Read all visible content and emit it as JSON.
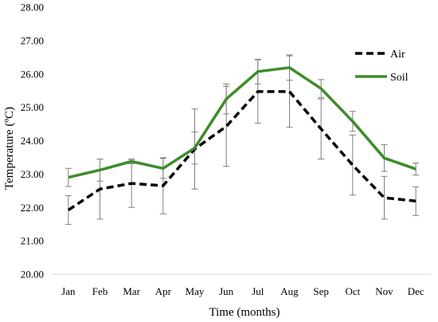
{
  "chart_data": {
    "type": "line",
    "xlabel": "Time (months)",
    "ylabel": "Temperature (ºC)",
    "ylim": [
      20,
      28
    ],
    "yticks": [
      20,
      21,
      22,
      23,
      24,
      25,
      26,
      27,
      28
    ],
    "ytick_labels": [
      "20.00",
      "21.00",
      "22.00",
      "23.00",
      "24.00",
      "25.00",
      "26.00",
      "27.00",
      "28.00"
    ],
    "categories": [
      "Jan",
      "Feb",
      "Mar",
      "Apr",
      "May",
      "Jun",
      "Jul",
      "Aug",
      "Sep",
      "Oct",
      "Nov",
      "Dec"
    ],
    "grid": false,
    "legend_position": "top-right",
    "series": [
      {
        "name": "Air",
        "color": "#000000",
        "style": "dashed",
        "values": [
          21.92,
          22.55,
          22.72,
          22.65,
          23.75,
          24.43,
          25.47,
          25.47,
          24.35,
          23.27,
          22.29,
          22.19
        ],
        "errors": [
          0.43,
          0.9,
          0.72,
          0.84,
          1.2,
          1.2,
          0.95,
          1.07,
          0.9,
          0.9,
          0.64,
          0.43
        ]
      },
      {
        "name": "Soil",
        "color": "#3d8c2a",
        "style": "solid",
        "values": [
          22.9,
          23.12,
          23.38,
          23.17,
          23.78,
          25.25,
          26.07,
          26.19,
          25.56,
          24.58,
          23.48,
          23.15
        ],
        "errors": [
          0.27,
          0.33,
          0.07,
          0.3,
          0.48,
          0.45,
          0.37,
          0.38,
          0.27,
          0.3,
          0.4,
          0.18
        ]
      }
    ]
  }
}
